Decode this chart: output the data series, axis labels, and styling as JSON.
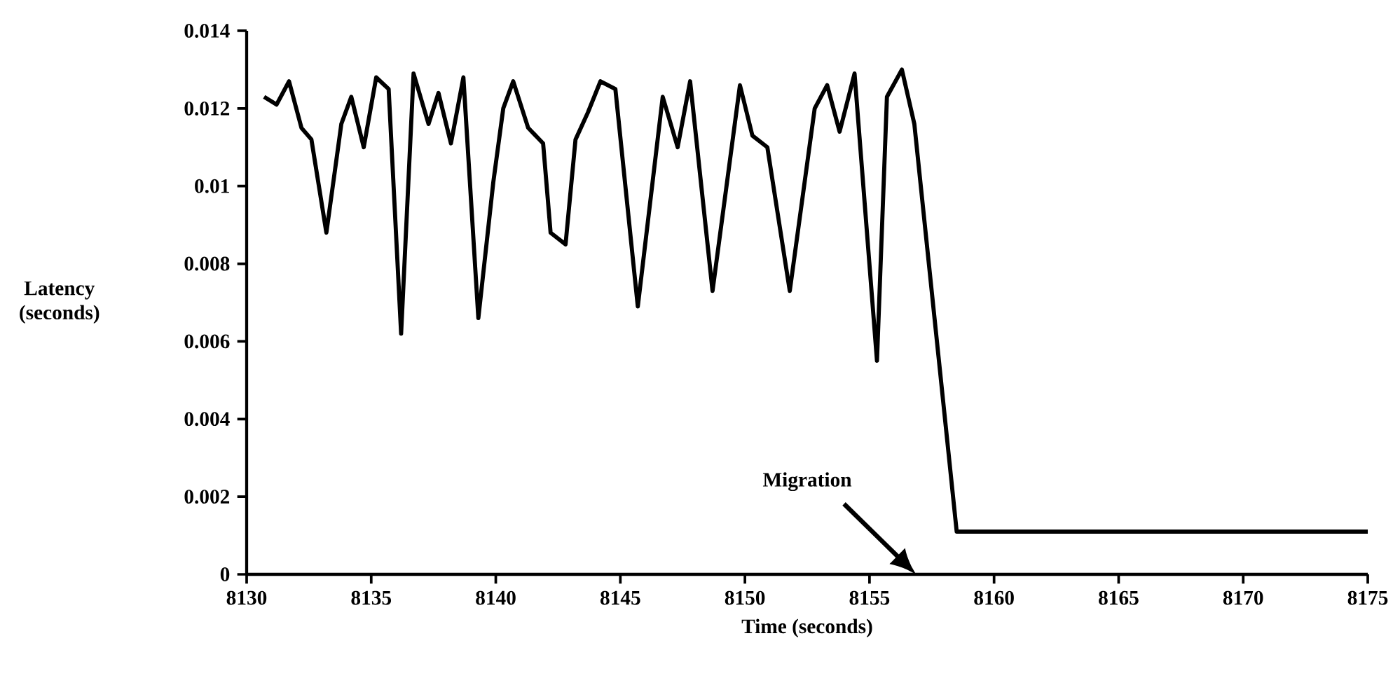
{
  "chart_data": {
    "type": "line",
    "xlabel": "Time (seconds)",
    "ylabel": "Latency (seconds)",
    "x": [
      8130.7,
      8131.2,
      8131.7,
      8132.2,
      8132.6,
      8133.2,
      8133.8,
      8134.2,
      8134.7,
      8135.2,
      8135.7,
      8136.2,
      8136.7,
      8137.3,
      8137.7,
      8138.2,
      8138.7,
      8139.3,
      8139.9,
      8140.3,
      8140.7,
      8141.3,
      8141.9,
      8142.2,
      8142.8,
      8143.2,
      8143.7,
      8144.2,
      8144.8,
      8145.7,
      8146.7,
      8147.3,
      8147.8,
      8148.7,
      8149.8,
      8150.3,
      8150.9,
      8151.8,
      8152.8,
      8153.3,
      8153.8,
      8154.4,
      8155.3,
      8155.7,
      8156.3,
      8156.8,
      8158.5,
      8175
    ],
    "values": [
      0.0123,
      0.0121,
      0.0127,
      0.0115,
      0.0112,
      0.0088,
      0.0116,
      0.0123,
      0.011,
      0.0128,
      0.0125,
      0.0062,
      0.0129,
      0.0116,
      0.0124,
      0.0111,
      0.0128,
      0.0066,
      0.0101,
      0.012,
      0.0127,
      0.0115,
      0.0111,
      0.0088,
      0.0085,
      0.0112,
      0.0119,
      0.0127,
      0.0125,
      0.0069,
      0.0123,
      0.011,
      0.0127,
      0.0073,
      0.0126,
      0.0113,
      0.011,
      0.0073,
      0.012,
      0.0126,
      0.0114,
      0.0129,
      0.0055,
      0.0123,
      0.013,
      0.0116,
      0.0011,
      0.0011
    ],
    "color": "#000000",
    "xlim": [
      8130,
      8175
    ],
    "ylim": [
      0,
      0.014
    ],
    "xticks": [
      8130,
      8135,
      8140,
      8145,
      8150,
      8155,
      8160,
      8165,
      8170,
      8175
    ],
    "yticks": [
      0,
      0.002,
      0.004,
      0.006,
      0.008,
      0.01,
      0.012,
      0.014
    ],
    "annotations": [
      "Migration"
    ],
    "grid": false
  }
}
